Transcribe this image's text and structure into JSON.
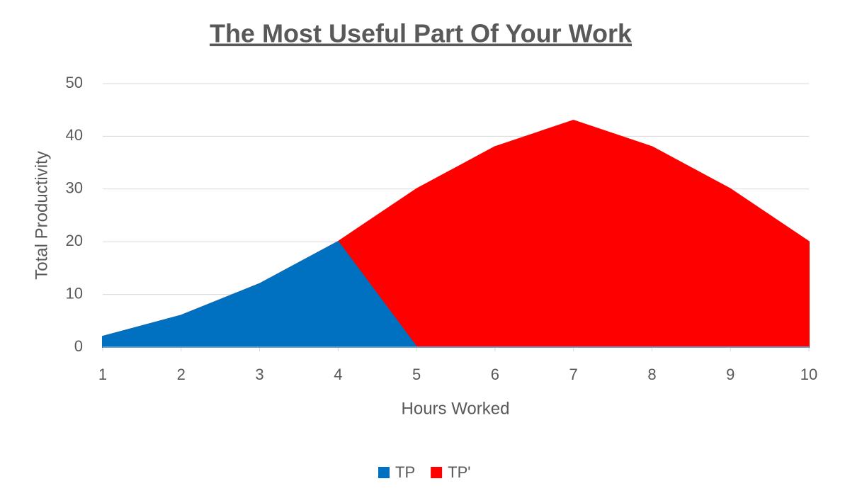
{
  "chart_data": {
    "type": "area",
    "title": "The Most Useful Part Of Your Work",
    "x_label": "Hours Worked",
    "y_label": "Total Productivity",
    "x": [
      1,
      2,
      3,
      4,
      5,
      6,
      7,
      8,
      9,
      10
    ],
    "series": [
      {
        "name": "TP",
        "color": "#0070c0",
        "values": [
          2,
          6,
          12,
          20,
          0,
          0,
          0,
          0,
          0,
          0
        ]
      },
      {
        "name": "TP'",
        "color": "#ff0000",
        "values": [
          2,
          6,
          12,
          20,
          30,
          38,
          43,
          38,
          30,
          20
        ]
      }
    ],
    "xlim": [
      1,
      10
    ],
    "xticks": [
      1,
      2,
      3,
      4,
      5,
      6,
      7,
      8,
      9,
      10
    ],
    "ylim": [
      0,
      50
    ],
    "yticks": [
      0,
      10,
      20,
      30,
      40,
      50
    ],
    "grid": true,
    "legend": "bottom"
  }
}
